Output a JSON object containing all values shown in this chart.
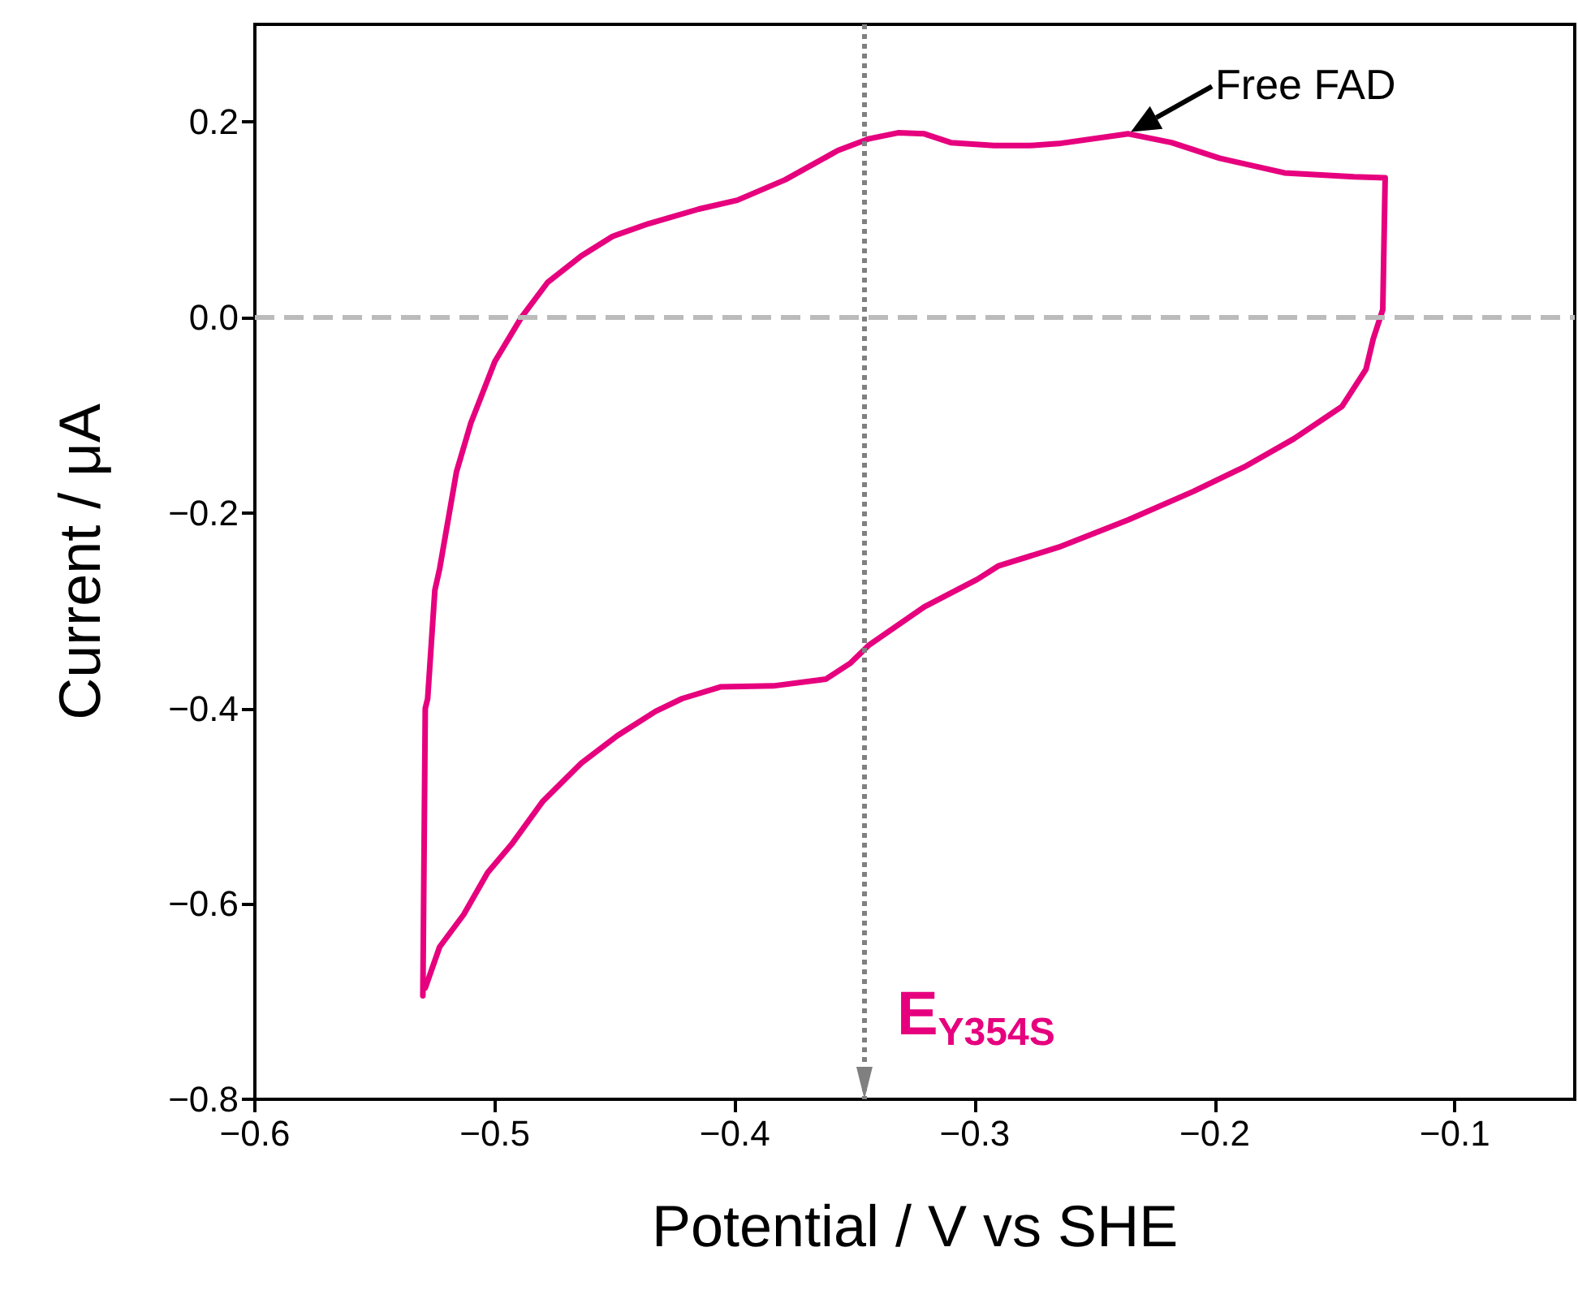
{
  "chart_data": {
    "type": "line",
    "xlabel": "Potential / V vs SHE",
    "ylabel": "Current / μA",
    "xlim": [
      -0.6,
      -0.05
    ],
    "ylim": [
      -0.8,
      0.3
    ],
    "xticks": [
      {
        "value": -0.6,
        "label": "−0.6"
      },
      {
        "value": -0.5,
        "label": "−0.5"
      },
      {
        "value": -0.4,
        "label": "−0.4"
      },
      {
        "value": -0.3,
        "label": "−0.3"
      },
      {
        "value": -0.2,
        "label": "−0.2"
      },
      {
        "value": -0.1,
        "label": "−0.1"
      }
    ],
    "yticks": [
      {
        "value": -0.8,
        "label": "−0.8"
      },
      {
        "value": -0.6,
        "label": "−0.6"
      },
      {
        "value": -0.4,
        "label": "−0.4"
      },
      {
        "value": -0.2,
        "label": "−0.2"
      },
      {
        "value": 0,
        "label": "0.0"
      },
      {
        "value": 0.2,
        "label": "0.2"
      }
    ],
    "grid": false,
    "marker": "none",
    "line_style": "solid",
    "series": [
      {
        "color": "#e6007e",
        "x": [
          -0.53,
          -0.529,
          -0.528,
          -0.525,
          -0.523,
          -0.516,
          -0.51,
          -0.5,
          -0.489,
          -0.478,
          -0.464,
          -0.451,
          -0.436,
          -0.415,
          -0.399,
          -0.379,
          -0.357,
          -0.344,
          -0.332,
          -0.321,
          -0.31,
          -0.292,
          -0.277,
          -0.265,
          -0.236,
          -0.218,
          -0.198,
          -0.171,
          -0.142,
          -0.129,
          -0.13,
          -0.134,
          -0.137,
          -0.147,
          -0.167,
          -0.187,
          -0.209,
          -0.236,
          -0.265,
          -0.29,
          -0.299,
          -0.321,
          -0.344,
          -0.352,
          -0.362,
          -0.384,
          -0.406,
          -0.422,
          -0.433,
          -0.449,
          -0.464,
          -0.48,
          -0.493,
          -0.503,
          -0.513,
          -0.523,
          -0.529
        ],
        "values": [
          -0.694,
          -0.4,
          -0.39,
          -0.279,
          -0.257,
          -0.158,
          -0.108,
          -0.045,
          0.0,
          0.036,
          0.063,
          0.083,
          0.096,
          0.111,
          0.12,
          0.141,
          0.171,
          0.183,
          0.189,
          0.188,
          0.179,
          0.176,
          0.176,
          0.178,
          0.188,
          0.179,
          0.163,
          0.148,
          0.144,
          0.143,
          0.008,
          -0.022,
          -0.053,
          -0.091,
          -0.124,
          -0.152,
          -0.178,
          -0.207,
          -0.235,
          -0.254,
          -0.268,
          -0.296,
          -0.335,
          -0.354,
          -0.37,
          -0.377,
          -0.378,
          -0.39,
          -0.403,
          -0.428,
          -0.456,
          -0.495,
          -0.539,
          -0.568,
          -0.611,
          -0.644,
          -0.686
        ]
      }
    ],
    "ref_lines": [
      {
        "axis": "y",
        "value": 0,
        "color": "#bbbbbb",
        "line_style": "dashed"
      },
      {
        "axis": "x",
        "value": -0.346,
        "label": "E$_{Y354S}$",
        "color": "#808080",
        "line_style": "dotted"
      }
    ],
    "annotations": [
      {
        "text": "Free FAD",
        "x": -0.235,
        "y": 0.19
      }
    ]
  }
}
